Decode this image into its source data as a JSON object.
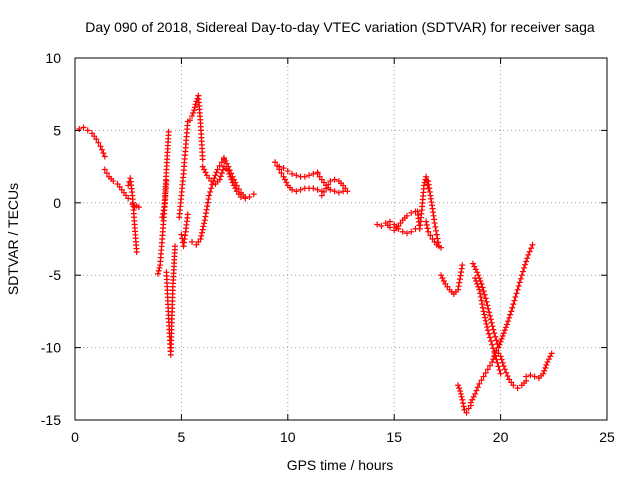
{
  "chart_data": {
    "type": "scatter",
    "title": "Day 090 of 2018, Sidereal Day-to-day VTEC variation (SDTVAR) for receiver saga",
    "xlabel": "GPS time / hours",
    "ylabel": "SDTVAR / TECUs",
    "xlim": [
      0,
      25
    ],
    "ylim": [
      -15,
      10
    ],
    "xticks": [
      "0",
      "5",
      "10",
      "15",
      "20",
      "25"
    ],
    "yticks": [
      "-15",
      "-10",
      "-5",
      "0",
      "5",
      "10"
    ],
    "grid": true,
    "marker": "plus",
    "color": "#ff0000",
    "segments": [
      {
        "x": [
          0.2,
          0.4,
          0.6,
          0.8,
          1.0,
          1.2,
          1.4
        ],
        "y": [
          5.1,
          5.2,
          5.0,
          4.8,
          4.4,
          3.9,
          3.2
        ]
      },
      {
        "x": [
          1.4,
          1.6,
          1.8,
          2.0,
          2.2,
          2.4,
          2.5
        ],
        "y": [
          2.3,
          1.8,
          1.5,
          1.3,
          0.9,
          0.5,
          0.3
        ]
      },
      {
        "x": [
          2.5,
          2.6,
          2.7,
          2.8,
          2.9
        ],
        "y": [
          1.2,
          1.7,
          0.5,
          -1.5,
          -3.4
        ]
      },
      {
        "x": [
          2.7,
          2.8,
          2.9,
          3.0
        ],
        "y": [
          -0.1,
          -0.3,
          -0.2,
          -0.3
        ]
      },
      {
        "x": [
          3.9,
          4.0,
          4.1,
          4.2,
          4.3
        ],
        "y": [
          -4.9,
          -4.3,
          -2.5,
          -0.5,
          1.5
        ]
      },
      {
        "x": [
          4.1,
          4.2,
          4.3,
          4.4
        ],
        "y": [
          -1.0,
          -0.3,
          2.3,
          4.9
        ]
      },
      {
        "x": [
          4.3,
          4.4,
          4.5,
          4.6,
          4.7
        ],
        "y": [
          -4.8,
          -8.0,
          -10.5,
          -5.8,
          -3.0
        ]
      },
      {
        "x": [
          4.9,
          5.0,
          5.1,
          5.2,
          5.3
        ],
        "y": [
          -1.0,
          0.5,
          2.0,
          3.8,
          5.6
        ]
      },
      {
        "x": [
          5.0,
          5.1,
          5.2,
          5.3
        ],
        "y": [
          -2.2,
          -3.0,
          -2.0,
          -0.8
        ]
      },
      {
        "x": [
          5.4,
          5.5,
          5.6,
          5.7,
          5.8,
          5.9,
          6.0
        ],
        "y": [
          5.7,
          6.0,
          6.4,
          7.0,
          7.4,
          5.5,
          3.0
        ]
      },
      {
        "x": [
          5.5,
          5.7,
          5.9,
          6.1,
          6.3,
          6.5,
          6.7,
          6.9,
          7.0
        ],
        "y": [
          -2.7,
          -2.9,
          -2.5,
          -1.2,
          0.5,
          1.5,
          2.3,
          2.8,
          3.0
        ]
      },
      {
        "x": [
          6.0,
          6.2,
          6.4,
          6.6,
          6.8,
          7.0,
          7.2,
          7.4,
          7.6,
          7.8,
          8.0,
          8.2,
          8.4
        ],
        "y": [
          2.5,
          1.9,
          1.5,
          1.3,
          1.6,
          2.5,
          2.2,
          1.4,
          0.8,
          0.4,
          0.3,
          0.4,
          0.6
        ]
      },
      {
        "x": [
          7.0,
          7.2,
          7.4,
          7.6,
          7.8,
          8.0
        ],
        "y": [
          3.1,
          2.5,
          1.8,
          1.2,
          0.7,
          0.4
        ]
      },
      {
        "x": [
          9.4,
          9.6,
          9.8,
          10.0,
          10.2,
          10.4,
          10.6,
          10.8,
          11.0,
          11.2,
          11.4,
          11.6
        ],
        "y": [
          2.8,
          2.3,
          1.8,
          1.2,
          0.9,
          0.8,
          0.9,
          1.0,
          1.0,
          1.0,
          0.9,
          0.8
        ]
      },
      {
        "x": [
          9.6,
          9.8,
          10.0,
          10.2,
          10.4,
          10.6,
          10.8,
          11.0,
          11.2,
          11.4
        ],
        "y": [
          2.5,
          2.4,
          2.2,
          2.0,
          1.9,
          1.8,
          1.8,
          1.9,
          2.0,
          2.1
        ]
      },
      {
        "x": [
          11.6,
          11.8,
          12.0,
          12.2,
          12.4,
          12.6,
          12.8
        ],
        "y": [
          0.5,
          1.0,
          1.5,
          1.6,
          1.5,
          1.2,
          0.8
        ]
      },
      {
        "x": [
          11.4,
          11.6,
          11.8,
          12.0,
          12.2,
          12.4,
          12.6
        ],
        "y": [
          2.0,
          1.6,
          1.2,
          0.9,
          0.8,
          0.7,
          0.8
        ]
      },
      {
        "x": [
          14.2,
          14.4,
          14.6,
          14.8,
          15.0,
          15.2,
          15.4,
          15.6,
          15.8,
          16.0
        ],
        "y": [
          -1.5,
          -1.6,
          -1.4,
          -1.7,
          -1.9,
          -1.6,
          -1.2,
          -0.9,
          -0.7,
          -0.6
        ]
      },
      {
        "x": [
          14.8,
          15.0,
          15.2,
          15.4,
          15.6,
          15.8,
          16.0
        ],
        "y": [
          -1.3,
          -1.5,
          -1.8,
          -2.0,
          -2.1,
          -2.0,
          -1.8
        ]
      },
      {
        "x": [
          16.1,
          16.2,
          16.3,
          16.4,
          16.5,
          16.6
        ],
        "y": [
          -0.6,
          -1.8,
          -0.5,
          1.2,
          1.8,
          1.0
        ]
      },
      {
        "x": [
          16.5,
          16.6,
          16.8,
          17.0,
          17.2
        ],
        "y": [
          -1.3,
          -2.0,
          -2.5,
          -2.9,
          -3.1
        ]
      },
      {
        "x": [
          16.6,
          16.7,
          16.8,
          16.9,
          17.0,
          17.1
        ],
        "y": [
          1.5,
          0.5,
          -0.4,
          -1.4,
          -2.2,
          -3.0
        ]
      },
      {
        "x": [
          17.2,
          17.4,
          17.6,
          17.8,
          18.0,
          18.2
        ],
        "y": [
          -5.0,
          -5.6,
          -6.0,
          -6.3,
          -6.0,
          -4.3
        ]
      },
      {
        "x": [
          18.0,
          18.1,
          18.2,
          18.3,
          18.4,
          18.5,
          18.6
        ],
        "y": [
          -12.6,
          -13.0,
          -13.6,
          -14.3,
          -14.5,
          -14.2,
          -14.0
        ]
      },
      {
        "x": [
          18.6,
          18.8,
          19.0,
          19.2,
          19.4,
          19.6,
          19.8,
          20.0,
          20.2,
          20.4,
          20.6,
          20.8,
          21.0,
          21.2
        ],
        "y": [
          -13.8,
          -13.2,
          -12.5,
          -12.0,
          -11.5,
          -11.0,
          -10.2,
          -10.6,
          -11.5,
          -12.2,
          -12.6,
          -12.8,
          -12.6,
          -12.3
        ]
      },
      {
        "x": [
          21.2,
          21.4,
          21.6,
          21.8,
          22.0,
          22.2,
          22.4
        ],
        "y": [
          -12.0,
          -11.9,
          -12.0,
          -12.1,
          -11.8,
          -11.0,
          -10.4
        ]
      },
      {
        "x": [
          18.7,
          18.9,
          19.1,
          19.3,
          19.5,
          19.7,
          19.9,
          20.1,
          20.3,
          20.5,
          20.7,
          20.9,
          21.1,
          21.3,
          21.5
        ],
        "y": [
          -4.2,
          -4.8,
          -5.6,
          -6.6,
          -7.8,
          -9.0,
          -10.0,
          -9.2,
          -8.4,
          -7.5,
          -6.5,
          -5.5,
          -4.5,
          -3.6,
          -2.9
        ]
      },
      {
        "x": [
          18.8,
          19.0,
          19.2,
          19.4,
          19.6,
          19.8,
          20.0
        ],
        "y": [
          -5.2,
          -6.0,
          -7.5,
          -8.8,
          -9.8,
          -10.8,
          -11.8
        ]
      }
    ]
  }
}
